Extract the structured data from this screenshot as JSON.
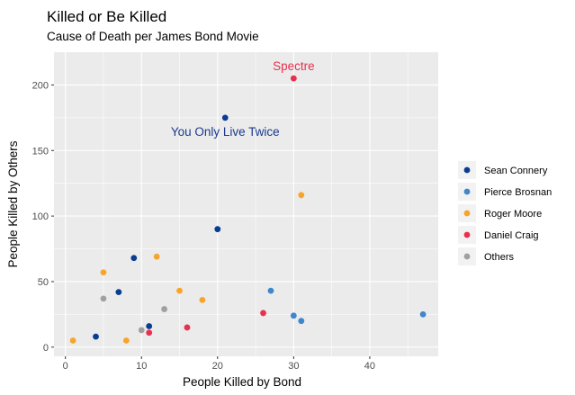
{
  "chart_data": {
    "type": "scatter",
    "title": "Killed or Be Killed",
    "subtitle": "Cause of Death per James Bond Movie",
    "xlabel": "People Killed by Bond",
    "ylabel": "People Killed by Others",
    "xlim": [
      -1.5,
      49
    ],
    "ylim": [
      -7,
      225
    ],
    "x_ticks": [
      0,
      10,
      20,
      30,
      40
    ],
    "y_ticks": [
      0,
      50,
      100,
      150,
      200
    ],
    "grid": true,
    "legend_position": "right",
    "series": [
      {
        "name": "Sean Connery",
        "color": "#0a3d91",
        "points": [
          [
            4,
            8
          ],
          [
            7,
            42
          ],
          [
            9,
            68
          ],
          [
            11,
            16
          ],
          [
            20,
            90
          ],
          [
            21,
            175
          ]
        ]
      },
      {
        "name": "Pierce Brosnan",
        "color": "#3f87cc",
        "points": [
          [
            27,
            43
          ],
          [
            30,
            24
          ],
          [
            31,
            20
          ],
          [
            47,
            25
          ]
        ]
      },
      {
        "name": "Roger Moore",
        "color": "#f7a52a",
        "points": [
          [
            1,
            5
          ],
          [
            5,
            57
          ],
          [
            8,
            5
          ],
          [
            12,
            69
          ],
          [
            15,
            43
          ],
          [
            18,
            36
          ],
          [
            31,
            116
          ]
        ]
      },
      {
        "name": "Daniel Craig",
        "color": "#e8304f",
        "points": [
          [
            11,
            11
          ],
          [
            16,
            15
          ],
          [
            26,
            26
          ],
          [
            30,
            205
          ]
        ]
      },
      {
        "name": "Others",
        "color": "#a0a0a0",
        "points": [
          [
            5,
            37
          ],
          [
            10,
            13
          ],
          [
            13,
            29
          ]
        ]
      }
    ],
    "annotations": [
      {
        "text": "Spectre",
        "x": 30,
        "y": 205,
        "color": "#e8304f"
      },
      {
        "text": "You Only Live Twice",
        "x": 21,
        "y": 175,
        "color": "#1a3a8f"
      }
    ]
  }
}
